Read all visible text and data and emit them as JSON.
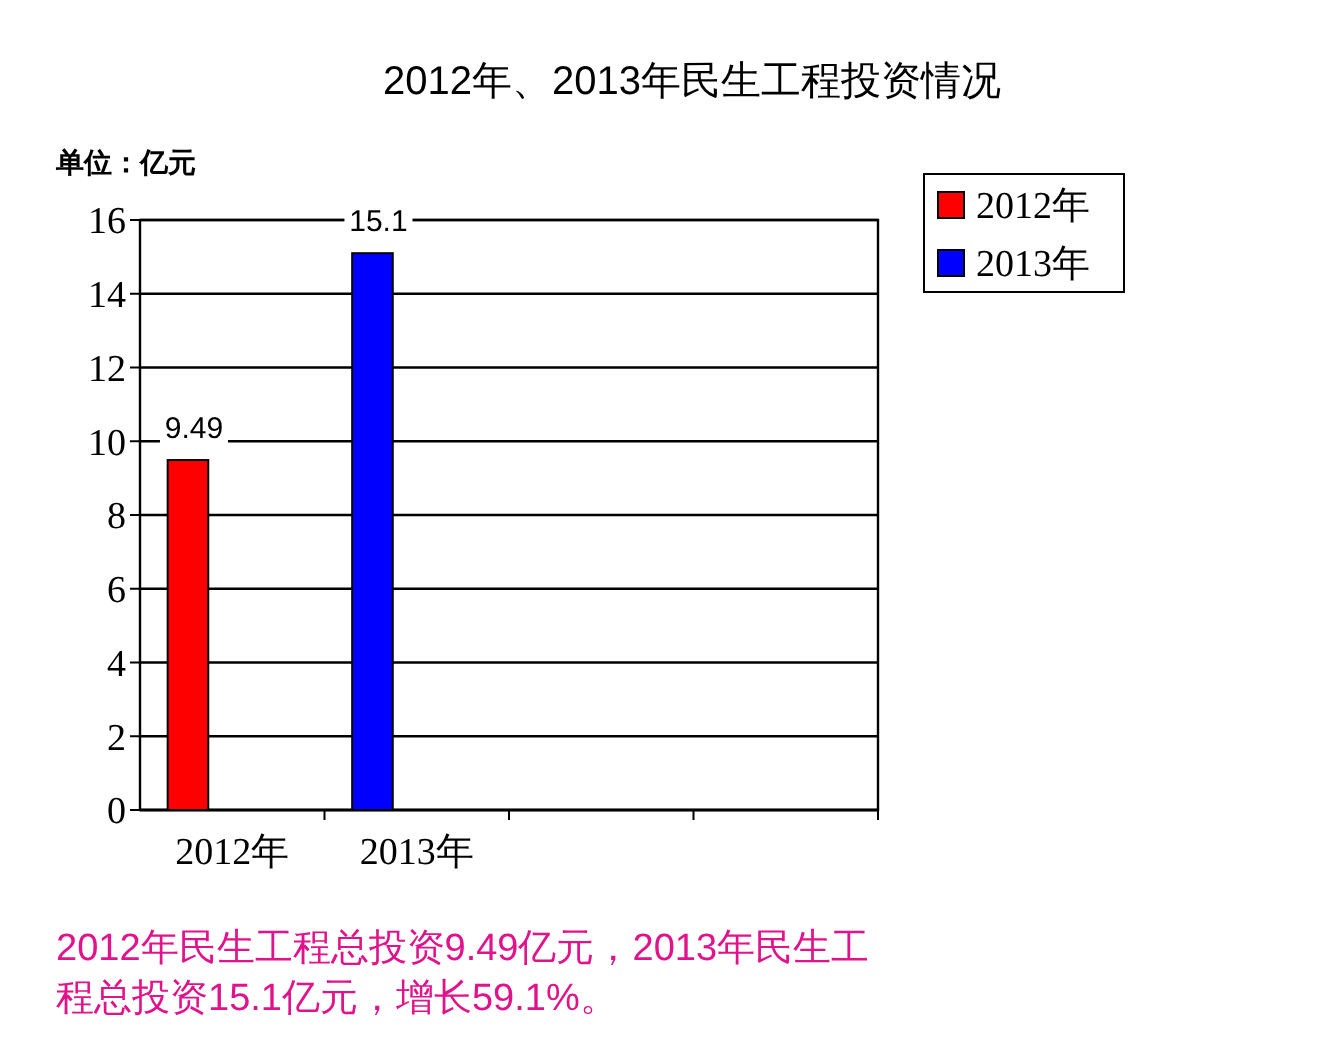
{
  "chart_data": {
    "type": "bar",
    "title": "2012年、2013年民生工程投资情况",
    "ylabel": "单位：亿元",
    "categories": [
      "2012年",
      "2013年",
      null,
      null
    ],
    "series": [
      {
        "name": "2012年",
        "color": "#ff0000",
        "values": [
          9.49,
          null,
          null,
          null
        ]
      },
      {
        "name": "2013年",
        "color": "#0000ff",
        "values": [
          null,
          15.1,
          null,
          null
        ]
      }
    ],
    "ylim": [
      0,
      16
    ],
    "yticks": [
      0,
      2,
      4,
      6,
      8,
      10,
      12,
      14,
      16
    ],
    "grid": "y",
    "legend": "top right",
    "data_labels": true,
    "annotations": [
      "2012年民生工程总投资9.49亿元，2013年民生工程总投资15.1亿元，增长59.1%。"
    ]
  }
}
